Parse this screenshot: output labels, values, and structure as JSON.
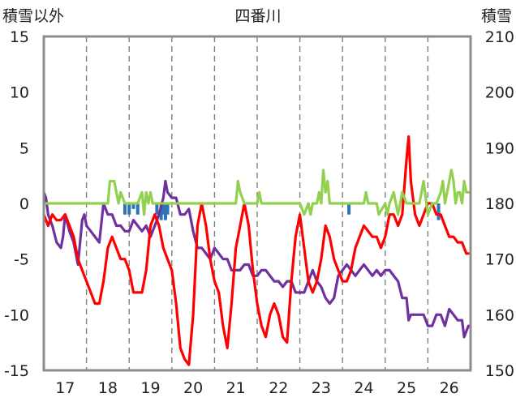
{
  "chart_data": {
    "type": "line",
    "title": "四番川",
    "left_axis_label": "積雪以外",
    "right_axis_label": "積雪",
    "left_ylim": [
      -15,
      15
    ],
    "left_ticks": [
      "15",
      "10",
      "5",
      "0",
      "-5",
      "-10",
      "-15"
    ],
    "right_ylim": [
      150,
      210
    ],
    "right_ticks": [
      "210",
      "200",
      "190",
      "180",
      "170",
      "160",
      "150"
    ],
    "xlim": [
      16.5,
      26.5
    ],
    "x_ticks": [
      "17",
      "18",
      "19",
      "20",
      "21",
      "22",
      "23",
      "24",
      "25",
      "26"
    ],
    "grid": "vertical-dashed",
    "series": [
      {
        "color": "#7030a0",
        "axis": "right",
        "x": [
          16.5,
          16.55,
          16.6,
          16.7,
          16.8,
          16.9,
          16.95,
          17.0,
          17.1,
          17.2,
          17.3,
          17.4,
          17.45,
          17.5,
          17.6,
          17.7,
          17.8,
          17.9,
          18.0,
          18.1,
          18.2,
          18.3,
          18.4,
          18.5,
          18.6,
          18.7,
          18.8,
          18.9,
          19.0,
          19.1,
          19.2,
          19.3,
          19.35,
          19.4,
          19.5,
          19.6,
          19.7,
          19.8,
          19.9,
          20.0,
          20.1,
          20.2,
          20.3,
          20.4,
          20.5,
          20.6,
          20.7,
          20.8,
          20.9,
          21.0,
          21.1,
          21.2,
          21.3,
          21.4,
          21.5,
          21.6,
          21.7,
          21.8,
          21.9,
          22.0,
          22.1,
          22.2,
          22.3,
          22.4,
          22.5,
          22.6,
          22.7,
          22.8,
          22.9,
          23.0,
          23.1,
          23.2,
          23.3,
          23.4,
          23.5,
          23.6,
          23.7,
          23.8,
          23.9,
          24.0,
          24.1,
          24.2,
          24.3,
          24.4,
          24.5,
          24.6,
          24.7,
          24.8,
          24.9,
          25.0,
          25.05,
          25.1,
          25.2,
          25.3,
          25.4,
          25.5,
          25.6,
          25.7,
          25.8,
          25.9,
          26.0,
          26.1,
          26.2,
          26.3,
          26.35,
          26.4,
          26.45
        ],
        "y": [
          182,
          181,
          178,
          176,
          173,
          172,
          174,
          178,
          175,
          173,
          169,
          177,
          178,
          176,
          175,
          174,
          173,
          180,
          178,
          178,
          176,
          176,
          175,
          175,
          177,
          176,
          175,
          176,
          174,
          176,
          178,
          181,
          184,
          182,
          181,
          181,
          178,
          178,
          179,
          175,
          172,
          172,
          171,
          170,
          172,
          171,
          170,
          170,
          168,
          168,
          168,
          169,
          169,
          167,
          167,
          168,
          168,
          167,
          166,
          166,
          165,
          166,
          166,
          164,
          164,
          164,
          166,
          168,
          166,
          165,
          163,
          162,
          163,
          167,
          168,
          169,
          168,
          167,
          168,
          169,
          168,
          167,
          168,
          167,
          168,
          168,
          167,
          166,
          163,
          163,
          159,
          160,
          160,
          160,
          160,
          158,
          158,
          160,
          160,
          158,
          161,
          160,
          159,
          159,
          156,
          157,
          158
        ]
      },
      {
        "color": "#ff0000",
        "axis": "left",
        "x": [
          16.5,
          16.6,
          16.7,
          16.8,
          16.9,
          17.0,
          17.1,
          17.2,
          17.3,
          17.4,
          17.5,
          17.6,
          17.7,
          17.8,
          17.9,
          18.0,
          18.1,
          18.2,
          18.3,
          18.4,
          18.5,
          18.6,
          18.7,
          18.8,
          18.9,
          19.0,
          19.1,
          19.2,
          19.3,
          19.4,
          19.5,
          19.6,
          19.7,
          19.8,
          19.9,
          20.0,
          20.1,
          20.2,
          20.3,
          20.4,
          20.5,
          20.6,
          20.7,
          20.8,
          20.9,
          21.0,
          21.1,
          21.2,
          21.3,
          21.4,
          21.5,
          21.6,
          21.7,
          21.8,
          21.9,
          22.0,
          22.1,
          22.2,
          22.3,
          22.4,
          22.5,
          22.6,
          22.7,
          22.8,
          22.9,
          23.0,
          23.1,
          23.2,
          23.3,
          23.4,
          23.5,
          23.6,
          23.7,
          23.8,
          23.9,
          24.0,
          24.1,
          24.2,
          24.3,
          24.4,
          24.5,
          24.6,
          24.7,
          24.8,
          24.9,
          25.0,
          25.05,
          25.1,
          25.2,
          25.3,
          25.4,
          25.5,
          25.6,
          25.7,
          25.8,
          25.9,
          26.0,
          26.1,
          26.2,
          26.3,
          26.4,
          26.45
        ],
        "y": [
          -1,
          -2,
          -1,
          -1.5,
          -1.5,
          -1,
          -2,
          -3,
          -5,
          -6,
          -7,
          -8,
          -9,
          -9,
          -7,
          -4,
          -3,
          -4,
          -5,
          -5,
          -6,
          -8,
          -8,
          -8,
          -6,
          -2,
          -1,
          -2,
          -4,
          -5,
          -6,
          -9,
          -13,
          -14,
          -14.5,
          -10,
          -2,
          0,
          -2,
          -5,
          -7,
          -8,
          -11,
          -13,
          -9,
          -4,
          -2,
          0,
          -2,
          -6,
          -9,
          -11,
          -12,
          -10,
          -9,
          -10,
          -12,
          -12.5,
          -7,
          -3,
          -1,
          -4,
          -7,
          -8,
          -7,
          -5,
          -2,
          -3,
          -5,
          -6,
          -7,
          -7,
          -6,
          -4,
          -3,
          -2,
          -2.5,
          -3,
          -3,
          -4,
          -3,
          -1,
          -1,
          -2,
          -1,
          4,
          6,
          2,
          -1,
          -2,
          -1,
          0,
          0,
          -1,
          -1,
          -2,
          -3,
          -3,
          -3.5,
          -3.5,
          -4.5,
          -4.5
        ]
      },
      {
        "color": "#92d050",
        "axis": "left",
        "x": [
          16.5,
          18.0,
          18.05,
          18.15,
          18.25,
          18.3,
          18.4,
          18.45,
          18.7,
          18.8,
          18.85,
          18.9,
          18.95,
          19.0,
          19.05,
          19.1,
          19.5,
          20.5,
          21.0,
          21.05,
          21.1,
          21.2,
          21.25,
          21.5,
          21.55,
          21.6,
          21.7,
          21.75,
          21.8,
          22.5,
          22.6,
          22.7,
          22.75,
          22.8,
          22.9,
          22.95,
          23.0,
          23.05,
          23.1,
          23.15,
          23.2,
          23.25,
          23.3,
          23.4,
          23.5,
          23.6,
          24.0,
          24.05,
          24.1,
          24.3,
          24.35,
          24.5,
          24.55,
          24.6,
          24.7,
          24.75,
          24.8,
          24.85,
          24.9,
          25.0,
          25.3,
          25.35,
          25.4,
          25.5,
          25.6,
          25.7,
          25.8,
          25.85,
          25.9,
          25.95,
          26.0,
          26.05,
          26.1,
          26.15,
          26.2,
          26.25,
          26.3,
          26.35,
          26.4,
          26.45
        ],
        "y": [
          0,
          0,
          2,
          2,
          0,
          1,
          0,
          0,
          0,
          1,
          -1,
          1,
          0,
          1,
          0,
          0,
          0,
          0,
          0,
          2,
          1,
          0,
          0,
          0,
          1,
          0,
          0,
          0,
          0,
          0,
          -1,
          0,
          -1,
          0,
          0,
          1,
          0,
          3,
          1,
          2,
          0,
          0,
          0,
          0,
          0,
          0,
          0,
          1,
          0,
          0,
          -1,
          0,
          -1,
          0,
          1,
          0,
          -1,
          0,
          1,
          0,
          0,
          1,
          2,
          -1,
          0,
          0,
          1,
          2,
          0,
          1,
          2,
          3,
          2,
          0,
          1,
          1,
          0,
          2,
          1,
          1
        ]
      }
    ],
    "bars": {
      "color": "#2e75b6",
      "axis": "left",
      "x": [
        18.4,
        18.5,
        18.6,
        18.7,
        19.15,
        19.25,
        19.3,
        19.35,
        19.4,
        23.65,
        25.75
      ],
      "values": [
        -1,
        -1,
        -0.5,
        -1,
        -1,
        -1.5,
        -1,
        -1.5,
        -1,
        -1,
        -1.5
      ]
    }
  }
}
